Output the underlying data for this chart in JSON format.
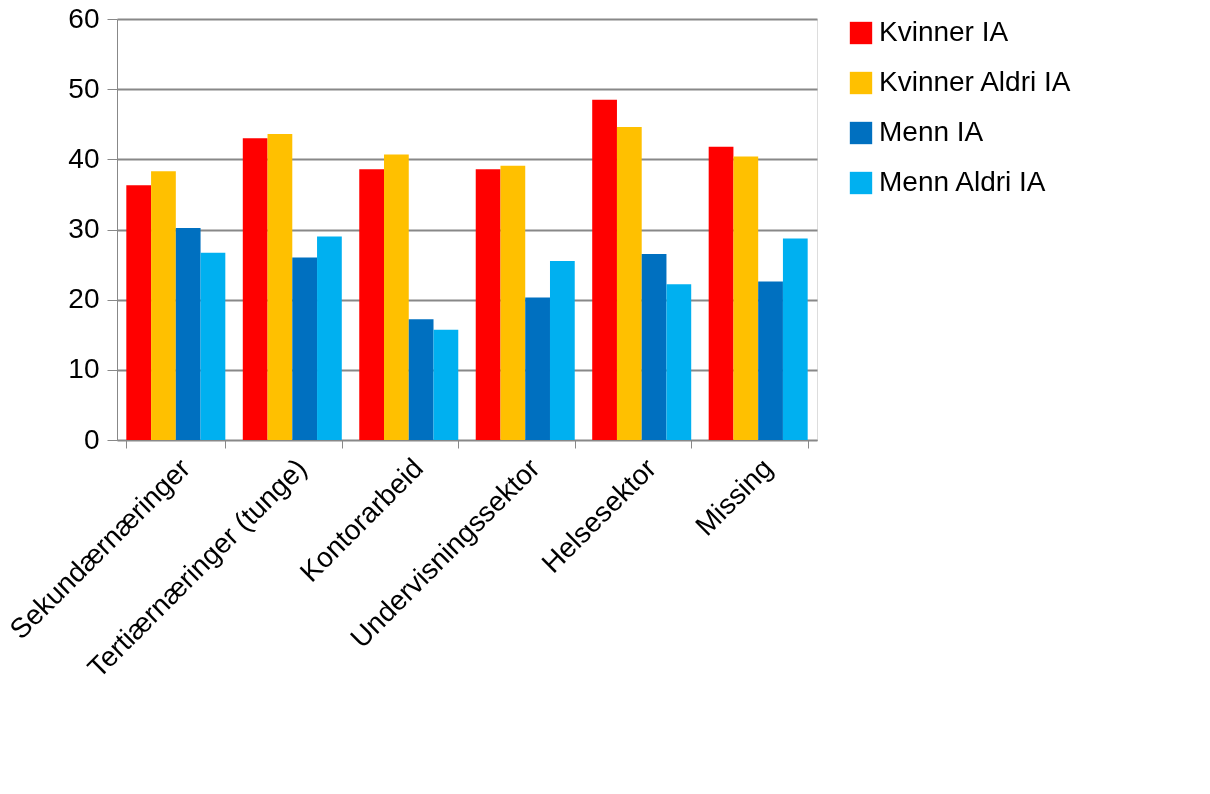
{
  "chart_data": {
    "type": "bar",
    "categories": [
      "Sekundærnæringer",
      "Tertiærnæringer (tunge)",
      "Kontorarbeid",
      "Undervisningssektor",
      "Helsesektor",
      "Missing"
    ],
    "series": [
      {
        "name": "Kvinner  IA",
        "color": "#ff0000",
        "values": [
          36.3,
          43.0,
          38.6,
          38.6,
          48.5,
          41.8
        ]
      },
      {
        "name": "Kvinner  Aldri IA",
        "color": "#ffc000",
        "values": [
          38.3,
          43.6,
          40.7,
          39.1,
          44.6,
          40.4
        ]
      },
      {
        "name": "Menn IA",
        "color": "#0070c0",
        "values": [
          30.2,
          26.0,
          17.2,
          20.3,
          26.5,
          22.6
        ]
      },
      {
        "name": "Menn Aldri IA",
        "color": "#00b0f0",
        "values": [
          26.7,
          29.0,
          15.7,
          25.5,
          22.2,
          28.7
        ]
      }
    ],
    "ylim": [
      0,
      60
    ],
    "yticks": [
      0,
      10,
      20,
      30,
      40,
      50,
      60
    ],
    "grid": "y",
    "legend": "right"
  }
}
